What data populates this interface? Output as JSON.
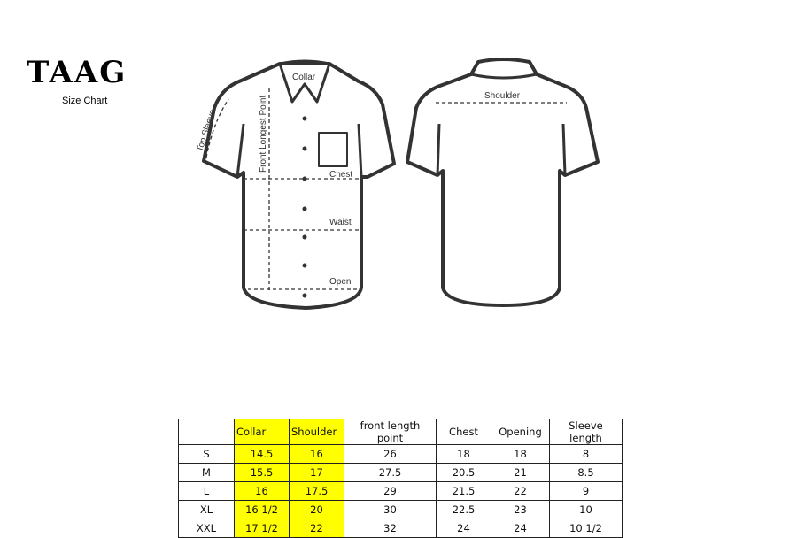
{
  "brand": {
    "logo": "TAAG",
    "subtitle": "Size Chart"
  },
  "diagram_labels": {
    "collar": "Collar",
    "front_length": "Front Longest Point",
    "top_sleeve": "Top Sleeve",
    "chest": "Chest",
    "waist": "Waist",
    "open": "Open",
    "shoulder": "Shoulder"
  },
  "table": {
    "headers": [
      "",
      "Collar",
      "Shoulder",
      "front length point",
      "Chest",
      "Opening",
      "Sleeve length"
    ],
    "highlight_color": "#ffff00",
    "rows": [
      [
        "S",
        "14.5",
        "16",
        "26",
        "18",
        "18",
        "8"
      ],
      [
        "M",
        "15.5",
        "17",
        "27.5",
        "20.5",
        "21",
        "8.5"
      ],
      [
        "L",
        "16",
        "17.5",
        "29",
        "21.5",
        "22",
        "9"
      ],
      [
        "XL",
        "16 1/2",
        "20",
        "30",
        "22.5",
        "23",
        "10"
      ],
      [
        "XXL",
        "17 1/2",
        "22",
        "32",
        "24",
        "24",
        "10 1/2"
      ]
    ]
  }
}
